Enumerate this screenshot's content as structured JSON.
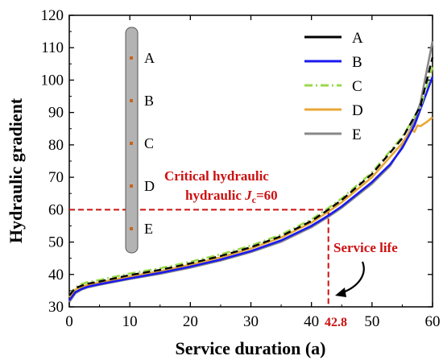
{
  "chart_data": {
    "type": "line",
    "xlabel": "Service duration (a)",
    "ylabel": "Hydraulic gradient",
    "xlim": [
      0,
      60
    ],
    "ylim": [
      30,
      120
    ],
    "xticks": [
      0,
      10,
      20,
      30,
      40,
      50,
      60
    ],
    "yticks": [
      30,
      40,
      50,
      60,
      70,
      80,
      90,
      100,
      110,
      120
    ],
    "grid": false,
    "legend_position": "top-right",
    "series": [
      {
        "name": "A",
        "color": "#000000",
        "dash": "solid",
        "x": [
          0,
          1,
          2,
          3,
          5,
          10,
          15,
          20,
          25,
          30,
          35,
          40,
          42.8,
          45,
          50,
          55,
          58,
          60
        ],
        "y": [
          33.5,
          35.8,
          36.5,
          37.1,
          37.8,
          39.8,
          41.4,
          43.4,
          45.7,
          48.4,
          51.8,
          56.5,
          60,
          63,
          71,
          82,
          92,
          107
        ]
      },
      {
        "name": "B",
        "color": "#1a1aee",
        "dash": "solid",
        "x": [
          0,
          1,
          2,
          3,
          5,
          10,
          15,
          20,
          25,
          30,
          35,
          40,
          42.8,
          45,
          50,
          53,
          55,
          57,
          58,
          60
        ],
        "y": [
          32,
          34.5,
          35.5,
          36.2,
          37,
          38.8,
          40.5,
          42.4,
          44.6,
          47.2,
          50.5,
          55,
          58.2,
          61,
          68.5,
          74,
          79,
          86,
          91,
          101
        ]
      },
      {
        "name": "C",
        "color": "#9ad94a",
        "dash": "dashdot",
        "x": [
          0,
          1,
          2,
          3,
          5,
          10,
          15,
          20,
          25,
          30,
          35,
          40,
          42.8,
          45,
          50,
          55,
          58,
          60
        ],
        "y": [
          33.5,
          36,
          37,
          37.6,
          38.3,
          40.3,
          41.9,
          43.9,
          46.2,
          48.9,
          52.3,
          57,
          60.5,
          63.5,
          71.5,
          82.5,
          91.5,
          104
        ]
      },
      {
        "name": "D",
        "color": "#e8a838",
        "dash": "solid",
        "x": [
          0,
          1,
          2,
          3,
          5,
          10,
          15,
          20,
          25,
          30,
          35,
          40,
          42.8,
          45,
          50,
          55,
          56.5,
          57,
          57.5,
          58,
          59,
          60
        ],
        "y": [
          33,
          35.3,
          36.2,
          36.8,
          37.5,
          39.4,
          41,
          43,
          45.3,
          48,
          51.4,
          56,
          59.4,
          62.3,
          70,
          80.5,
          85,
          84,
          86,
          85.8,
          87,
          88.5
        ]
      },
      {
        "name": "E",
        "color": "#888888",
        "dash": "solid",
        "x": [
          0,
          1,
          2,
          3,
          5,
          10,
          15,
          20,
          25,
          30,
          35,
          40,
          42.8,
          45,
          50,
          53,
          55,
          57,
          58,
          60
        ],
        "y": [
          31.5,
          34.2,
          35.3,
          36,
          36.8,
          38.6,
          40.2,
          42.1,
          44.3,
          46.9,
          50.1,
          54.6,
          57.8,
          60.6,
          68,
          73.5,
          79.5,
          87.5,
          93,
          112
        ]
      }
    ],
    "annotations": {
      "critical_line1": "Critical hydraulic",
      "critical_line2_pre": "hydraulic ",
      "critical_symbol": "J",
      "critical_subscript": "c",
      "critical_line2_post": "=60",
      "critical_value": 60,
      "service_life_label": "Service life",
      "service_life_value": 42.8,
      "service_life_text": "42.8",
      "annotation_color": "#cc1111"
    },
    "probe": {
      "labels": [
        "A",
        "B",
        "C",
        "D",
        "E"
      ],
      "body_color": "#b3b3b3",
      "marker_color": "#c8641e"
    }
  }
}
